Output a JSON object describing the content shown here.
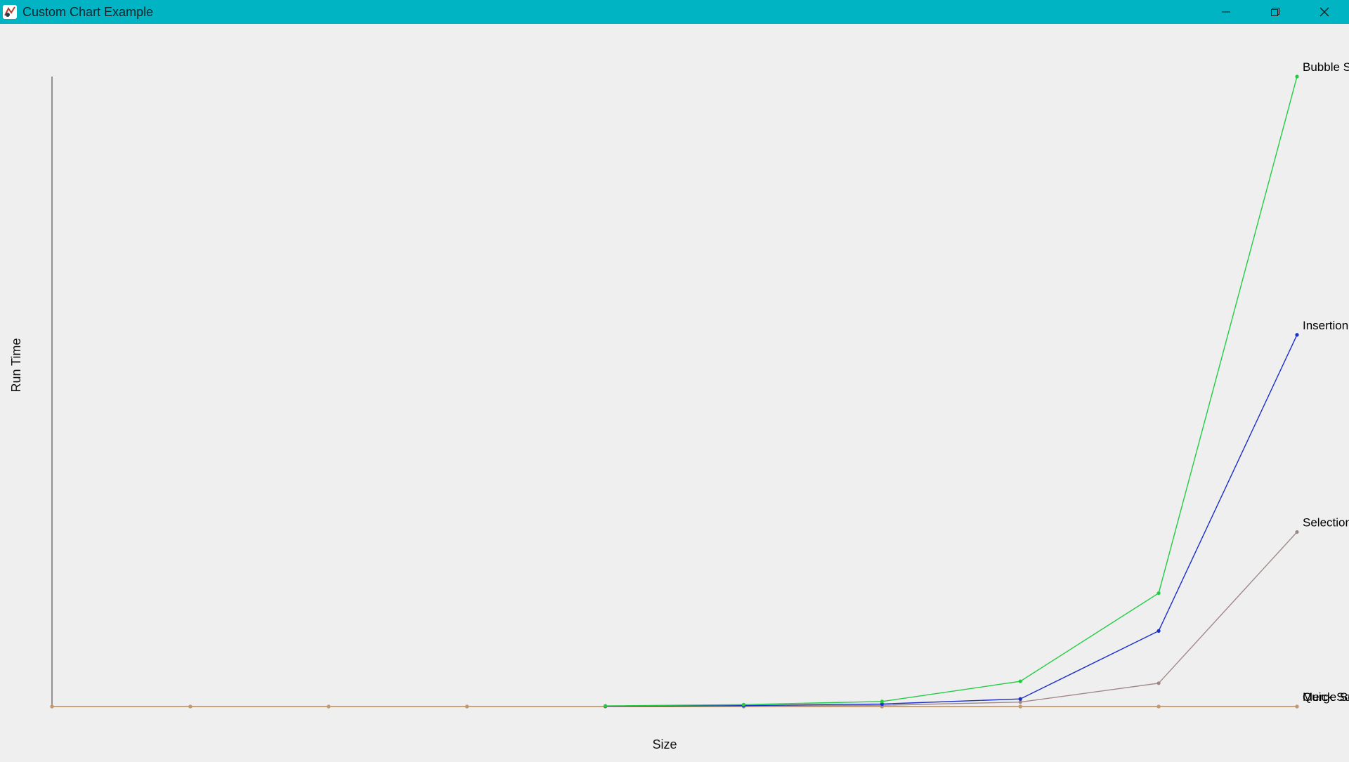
{
  "window": {
    "title": "Custom Chart Example",
    "icons": {
      "app": "java-app-icon",
      "minimize": "minimize-icon",
      "restore": "restore-icon",
      "close": "close-icon"
    }
  },
  "colors": {
    "titlebar": "#00b4c4",
    "background": "#efefef",
    "axis": "#333333"
  },
  "chart_data": {
    "type": "line",
    "xlabel": "Size",
    "ylabel": "Run Time",
    "x": [
      0,
      1,
      2,
      3,
      4,
      5,
      6,
      7,
      8,
      9
    ],
    "ylim": [
      0,
      100
    ],
    "grid": false,
    "legend": "end-of-line labels",
    "series": [
      {
        "name": "Bubble Sort",
        "color": "#22cc44",
        "start": 4,
        "values": [
          0,
          0,
          0,
          0,
          0.1,
          0.3,
          0.8,
          4,
          18,
          100
        ]
      },
      {
        "name": "Insertion Sort",
        "color": "#1a2ecc",
        "start": 4,
        "values": [
          0,
          0,
          0,
          0,
          0.05,
          0.15,
          0.4,
          1.2,
          12,
          59
        ]
      },
      {
        "name": "Selection Sort",
        "color": "#a08888",
        "start": 4,
        "values": [
          0,
          0,
          0,
          0,
          0.03,
          0.05,
          0.2,
          0.7,
          3.7,
          27.7
        ]
      },
      {
        "name": "Merge Sort",
        "color": "#c29870",
        "start": 0,
        "values": [
          0,
          0,
          0,
          0,
          0,
          0,
          0,
          0,
          0,
          0
        ]
      },
      {
        "name": "Quick Sort",
        "color": "#d49a55",
        "start": 0,
        "values": [
          0,
          0,
          0,
          0,
          0,
          0,
          0,
          0,
          0,
          0
        ]
      }
    ]
  }
}
